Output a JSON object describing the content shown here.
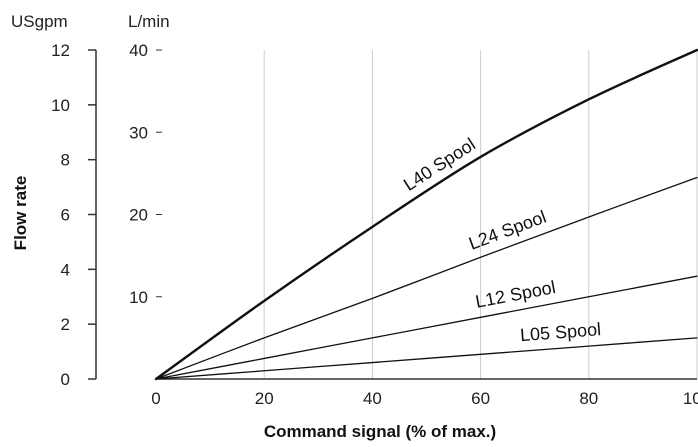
{
  "chart_data": {
    "type": "line",
    "title": "",
    "xlabel": "Command signal (% of max.)",
    "ylabel": "Flow rate",
    "xlim": [
      0,
      100
    ],
    "ylim_lmin": [
      0,
      40
    ],
    "ylim_usgpm": [
      0,
      12
    ],
    "x_ticks": [
      "0",
      "20",
      "40",
      "60",
      "80",
      "100"
    ],
    "y_ticks_lmin": [
      "10",
      "20",
      "30",
      "40"
    ],
    "y_ticks_usgpm": [
      "0",
      "2",
      "4",
      "6",
      "8",
      "10",
      "12"
    ],
    "y_unit_left": "USgpm",
    "y_unit_right": "L/min",
    "grid": true,
    "series": [
      {
        "name": "L40 Spool",
        "x": [
          0,
          20,
          40,
          60,
          80,
          100
        ],
        "y": [
          0,
          9.5,
          18.5,
          27,
          34,
          40
        ],
        "weight": "heavy"
      },
      {
        "name": "L24 Spool",
        "x": [
          0,
          20,
          40,
          60,
          80,
          100
        ],
        "y": [
          0,
          5,
          9.8,
          14.8,
          19.7,
          24.5
        ],
        "weight": "light"
      },
      {
        "name": "L12 Spool",
        "x": [
          0,
          20,
          40,
          60,
          80,
          100
        ],
        "y": [
          0,
          2.5,
          5,
          7.5,
          10,
          12.5
        ],
        "weight": "light"
      },
      {
        "name": "L05 Spool",
        "x": [
          0,
          20,
          40,
          60,
          80,
          100
        ],
        "y": [
          0,
          1,
          2,
          3,
          4,
          5
        ],
        "weight": "light"
      }
    ]
  },
  "colors": {
    "line": "#111111",
    "grid": "#cccccc",
    "axis": "#333333"
  }
}
